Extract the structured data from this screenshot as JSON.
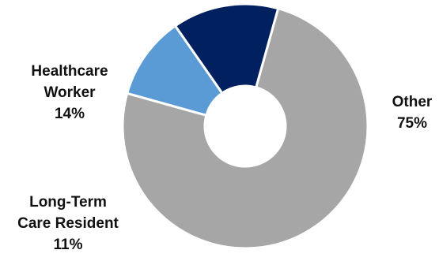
{
  "chart_data": {
    "type": "pie",
    "donut": true,
    "slices": [
      {
        "label_lines": [
          "Other"
        ],
        "value_text": "75%",
        "value": 75,
        "color": "#a6a6a6"
      },
      {
        "label_lines": [
          "Long-Term",
          "Care Resident"
        ],
        "value_text": "11%",
        "value": 11,
        "color": "#5b9bd5"
      },
      {
        "label_lines": [
          "Healthcare",
          "Worker"
        ],
        "value_text": "14%",
        "value": 14,
        "color": "#002060"
      }
    ]
  }
}
